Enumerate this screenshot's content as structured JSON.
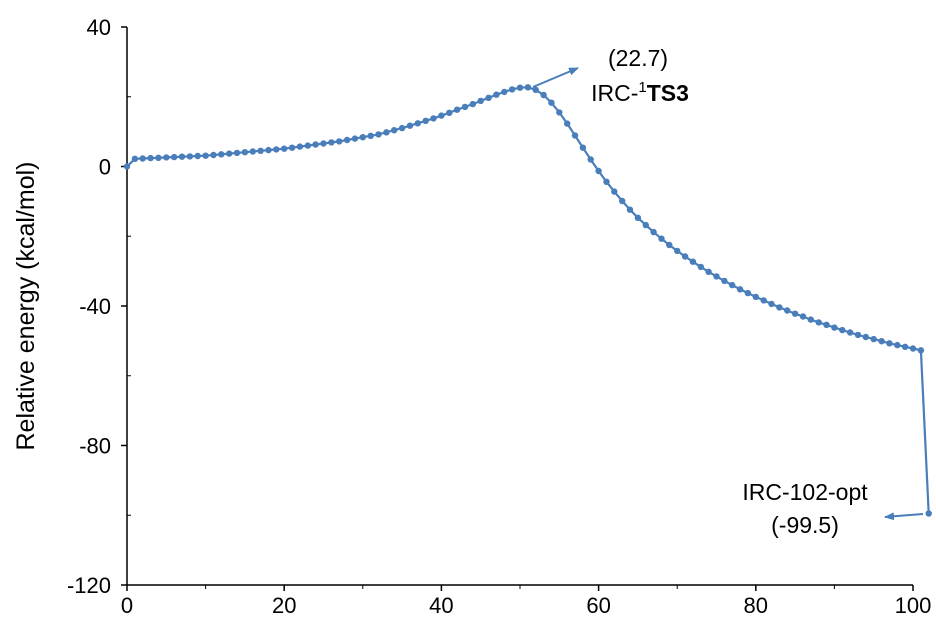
{
  "chart_data": {
    "type": "line",
    "ylabel": "Relative energy (kcal/mol)",
    "xlabel": "",
    "xlim": [
      0,
      100
    ],
    "ylim": [
      -120,
      40
    ],
    "xticks": [
      0,
      20,
      40,
      60,
      80,
      100
    ],
    "yticks": [
      40,
      0,
      -40,
      -80,
      -120
    ],
    "xtick_labels": [
      "0",
      "20",
      "40",
      "60",
      "80",
      "100"
    ],
    "ytick_labels": [
      "40",
      "0",
      "-40",
      "-80",
      "-120"
    ],
    "series_color": "#4a7ebb",
    "series": [
      {
        "x": [
          0,
          1,
          2,
          3,
          4,
          5,
          6,
          7,
          8,
          9,
          10,
          11,
          12,
          13,
          14,
          15,
          16,
          17,
          18,
          19,
          20,
          21,
          22,
          23,
          24,
          25,
          26,
          27,
          28,
          29,
          30,
          31,
          32,
          33,
          34,
          35,
          36,
          37,
          38,
          39,
          40,
          41,
          42,
          43,
          44,
          45,
          46,
          47,
          48,
          49,
          50,
          51,
          52,
          53,
          54,
          55,
          56,
          57,
          58,
          59,
          60,
          61,
          62,
          63,
          64,
          65,
          66,
          67,
          68,
          69,
          70,
          71,
          72,
          73,
          74,
          75,
          76,
          77,
          78,
          79,
          80,
          81,
          82,
          83,
          84,
          85,
          86,
          87,
          88,
          89,
          90,
          91,
          92,
          93,
          94,
          95,
          96,
          97,
          98,
          99,
          100,
          101,
          102
        ],
        "y": [
          0.0,
          2.2,
          2.3,
          2.4,
          2.5,
          2.6,
          2.7,
          2.8,
          2.9,
          3.0,
          3.1,
          3.3,
          3.5,
          3.7,
          3.9,
          4.1,
          4.3,
          4.5,
          4.7,
          4.9,
          5.1,
          5.4,
          5.7,
          6.0,
          6.3,
          6.6,
          6.9,
          7.2,
          7.6,
          8.0,
          8.4,
          8.8,
          9.2,
          9.8,
          10.4,
          11.0,
          11.7,
          12.4,
          13.1,
          13.8,
          14.6,
          15.4,
          16.3,
          17.1,
          17.9,
          18.8,
          19.7,
          20.6,
          21.4,
          22.1,
          22.6,
          22.7,
          22.0,
          20.5,
          18.3,
          15.5,
          12.3,
          8.9,
          5.4,
          2.0,
          -1.3,
          -4.4,
          -7.2,
          -9.9,
          -12.4,
          -14.7,
          -16.8,
          -18.8,
          -20.7,
          -22.5,
          -24.2,
          -25.8,
          -27.3,
          -28.8,
          -30.2,
          -31.5,
          -32.8,
          -34.0,
          -35.2,
          -36.3,
          -37.4,
          -38.4,
          -39.4,
          -40.4,
          -41.3,
          -42.2,
          -43.0,
          -43.9,
          -44.7,
          -45.4,
          -46.2,
          -46.9,
          -47.6,
          -48.3,
          -48.9,
          -49.5,
          -50.1,
          -50.7,
          -51.2,
          -51.7,
          -52.2,
          -52.7,
          -99.5
        ]
      }
    ],
    "annotations": {
      "ts_value": "(22.7)",
      "ts_label_prefix": "IRC-",
      "ts_label_sup": "1",
      "ts_label_bold": "TS3",
      "end_label": "IRC-102-opt",
      "end_value": "(-99.5)"
    }
  }
}
